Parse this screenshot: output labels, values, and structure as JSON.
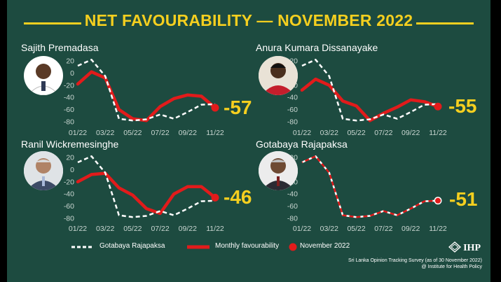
{
  "title": "NET FAVOURABILITY — NOVEMBER 2022",
  "colors": {
    "background": "#1d4b40",
    "accent": "#f5cf1f",
    "monthly": "#e21b1b",
    "reference": "#ffffff"
  },
  "chart_data": [
    {
      "type": "line",
      "panel_label": "Sajith Premadasa",
      "photo_icon": "portrait-photo",
      "callout": "-57",
      "x": [
        "01/22",
        "02/22",
        "03/22",
        "04/22",
        "05/22",
        "06/22",
        "07/22",
        "08/22",
        "09/22",
        "10/22",
        "11/22"
      ],
      "x_tick_labels": [
        "01/22",
        "03/22",
        "05/22",
        "07/22",
        "09/22",
        "11/22"
      ],
      "ylim": [
        -80,
        20
      ],
      "y_ticks": [
        20,
        0,
        -20,
        -40,
        -60,
        -80
      ],
      "series": [
        {
          "name": "Monthly favourability",
          "values": [
            -18,
            2,
            -8,
            -60,
            -75,
            -78,
            -55,
            -42,
            -36,
            -38,
            -57
          ]
        },
        {
          "name": "Gotabaya Rajapaksa",
          "values": [
            12,
            22,
            -5,
            -75,
            -78,
            -76,
            -68,
            -75,
            -64,
            -52,
            -51
          ]
        }
      ],
      "highlight": {
        "name": "November 2022",
        "x": "11/22",
        "y": -57
      }
    },
    {
      "type": "line",
      "panel_label": "Anura Kumara Dissanayake",
      "photo_icon": "portrait-photo",
      "callout": "-55",
      "x": [
        "01/22",
        "02/22",
        "03/22",
        "04/22",
        "05/22",
        "06/22",
        "07/22",
        "08/22",
        "09/22",
        "10/22",
        "11/22"
      ],
      "x_tick_labels": [
        "01/22",
        "03/22",
        "05/22",
        "07/22",
        "09/22",
        "11/22"
      ],
      "ylim": [
        -80,
        20
      ],
      "y_ticks": [
        20,
        0,
        -20,
        -40,
        -60,
        -80
      ],
      "series": [
        {
          "name": "Monthly favourability",
          "values": [
            -28,
            -10,
            -20,
            -46,
            -54,
            -78,
            -66,
            -56,
            -44,
            -47,
            -55
          ]
        },
        {
          "name": "Gotabaya Rajapaksa",
          "values": [
            12,
            22,
            -5,
            -75,
            -78,
            -76,
            -68,
            -75,
            -64,
            -52,
            -51
          ]
        }
      ],
      "highlight": {
        "name": "November 2022",
        "x": "11/22",
        "y": -55
      }
    },
    {
      "type": "line",
      "panel_label": "Ranil Wickremesinghe",
      "photo_icon": "portrait-photo",
      "callout": "-46",
      "x": [
        "01/22",
        "02/22",
        "03/22",
        "04/22",
        "05/22",
        "06/22",
        "07/22",
        "08/22",
        "09/22",
        "10/22",
        "11/22"
      ],
      "x_tick_labels": [
        "01/22",
        "03/22",
        "05/22",
        "07/22",
        "09/22",
        "11/22"
      ],
      "ylim": [
        -80,
        20
      ],
      "y_ticks": [
        20,
        0,
        -20,
        -40,
        -60,
        -80
      ],
      "series": [
        {
          "name": "Monthly favourability",
          "values": [
            -20,
            -8,
            -6,
            -30,
            -42,
            -64,
            -72,
            -40,
            -28,
            -28,
            -46
          ]
        },
        {
          "name": "Gotabaya Rajapaksa",
          "values": [
            12,
            22,
            -5,
            -75,
            -78,
            -76,
            -68,
            -75,
            -64,
            -52,
            -51
          ]
        }
      ],
      "highlight": {
        "name": "November 2022",
        "x": "11/22",
        "y": -46
      }
    },
    {
      "type": "line",
      "panel_label": "Gotabaya Rajapaksa",
      "photo_icon": "portrait-photo",
      "callout": "-51",
      "x": [
        "01/22",
        "02/22",
        "03/22",
        "04/22",
        "05/22",
        "06/22",
        "07/22",
        "08/22",
        "09/22",
        "10/22",
        "11/22"
      ],
      "x_tick_labels": [
        "01/22",
        "03/22",
        "05/22",
        "07/22",
        "09/22",
        "11/22"
      ],
      "ylim": [
        -80,
        20
      ],
      "y_ticks": [
        20,
        0,
        -20,
        -40,
        -60,
        -80
      ],
      "series": [
        {
          "name": "Gotabaya Rajapaksa",
          "values": [
            12,
            22,
            -5,
            -75,
            -78,
            -76,
            -68,
            -75,
            -64,
            -52,
            -51
          ]
        }
      ],
      "highlight": {
        "name": "November 2022",
        "x": "11/22",
        "y": -51
      }
    }
  ],
  "legend": [
    {
      "label": "Gotabaya Rajapaksa",
      "style": "dashed-white-line"
    },
    {
      "label": "Monthly favourability",
      "style": "solid-red-line"
    },
    {
      "label": "November 2022",
      "style": "red-dot"
    }
  ],
  "brand": "IHP",
  "source_lines": [
    "Sri Lanka Opinion Tracking Survey (as of 30 November 2022)",
    "@ Institute for Health Policy"
  ]
}
